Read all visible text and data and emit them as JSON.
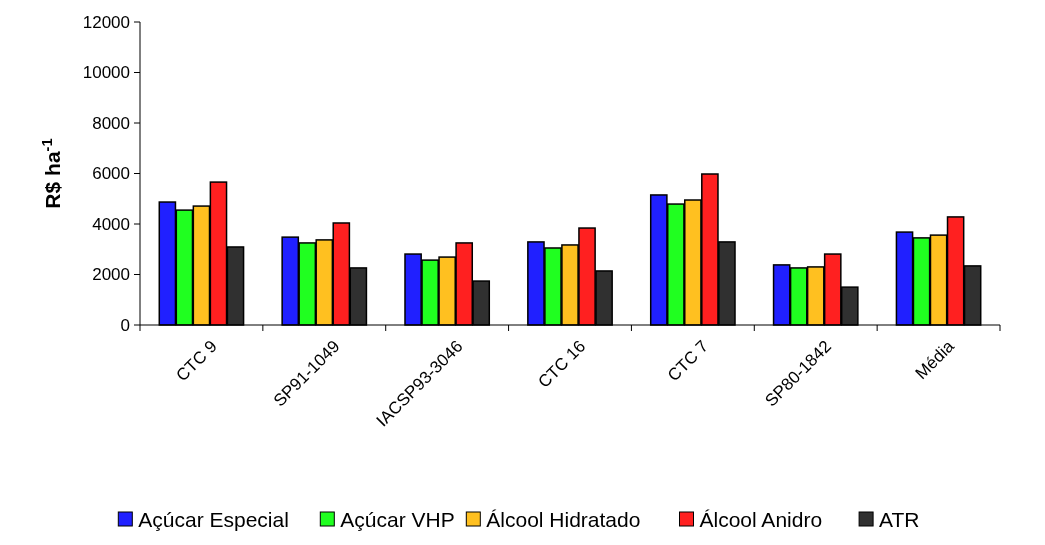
{
  "chart_data": {
    "type": "bar",
    "ylabel": "R$ ha$^{-1}$",
    "categories": [
      "CTC 9",
      "SP91-1049",
      "IACSP93-3046",
      "CTC 16",
      "CTC 7",
      "SP80-1842",
      "Média"
    ],
    "series": [
      {
        "name": "Açúcar Especial",
        "color": "#2020ff",
        "values": [
          4870,
          3480,
          2810,
          3290,
          5150,
          2380,
          3680
        ]
      },
      {
        "name": "Açúcar VHP",
        "color": "#20ff20",
        "values": [
          4550,
          3250,
          2570,
          3050,
          4790,
          2260,
          3450
        ]
      },
      {
        "name": "Álcool Hidratado",
        "color": "#ffc020",
        "values": [
          4710,
          3370,
          2690,
          3170,
          4950,
          2300,
          3560
        ]
      },
      {
        "name": "Álcool Anidro",
        "color": "#ff2020",
        "values": [
          5660,
          4040,
          3250,
          3840,
          5980,
          2810,
          4280
        ]
      },
      {
        "name": "ATR",
        "color": "#303030",
        "values": [
          3090,
          2260,
          1740,
          2140,
          3290,
          1500,
          2340
        ]
      }
    ],
    "ylim": [
      0,
      12000
    ],
    "yticks": [
      0,
      2000,
      4000,
      6000,
      8000,
      10000,
      12000
    ],
    "grid": false,
    "legend": "bottom"
  }
}
